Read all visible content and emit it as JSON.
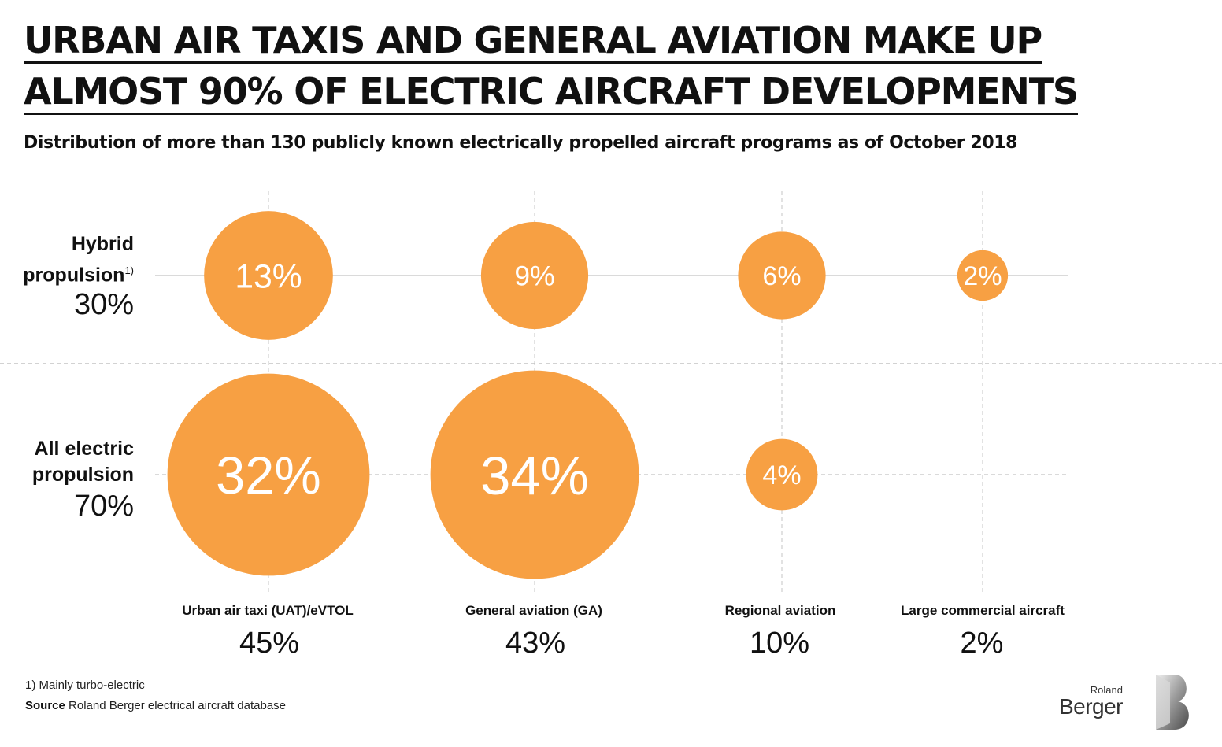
{
  "title": {
    "line1": "URBAN AIR TAXIS AND GENERAL AVIATION MAKE UP",
    "line2": "ALMOST 90% OF ELECTRIC AIRCRAFT DEVELOPMENTS"
  },
  "subtitle": "Distribution of more than 130 publicly known electrically propelled aircraft programs as of October 2018",
  "chart_data": {
    "type": "bubble",
    "categories": [
      "Urban air taxi (UAT)/eVTOL",
      "General aviation (GA)",
      "Regional aviation",
      "Large commercial aircraft"
    ],
    "category_totals": [
      "45%",
      "43%",
      "10%",
      "2%"
    ],
    "rows": [
      {
        "name": "Hybrid propulsion",
        "footnote_mark": "1)",
        "total": "30%",
        "values": [
          13,
          9,
          6,
          2
        ]
      },
      {
        "name": "All electric propulsion",
        "total": "70%",
        "values": [
          32,
          34,
          4,
          null
        ]
      }
    ],
    "unit": "%",
    "bubble_color": "#F7A043",
    "grid": true
  },
  "labels": {
    "row1_line1": "Hybrid",
    "row1_line2": "propulsion",
    "row2_line1": "All electric",
    "row2_line2": "propulsion"
  },
  "footnote": "1) Mainly turbo-electric",
  "source": {
    "label": "Source",
    "text": "Roland Berger electrical aircraft database"
  },
  "logo": {
    "line1": "Roland",
    "line2": "Berger"
  }
}
